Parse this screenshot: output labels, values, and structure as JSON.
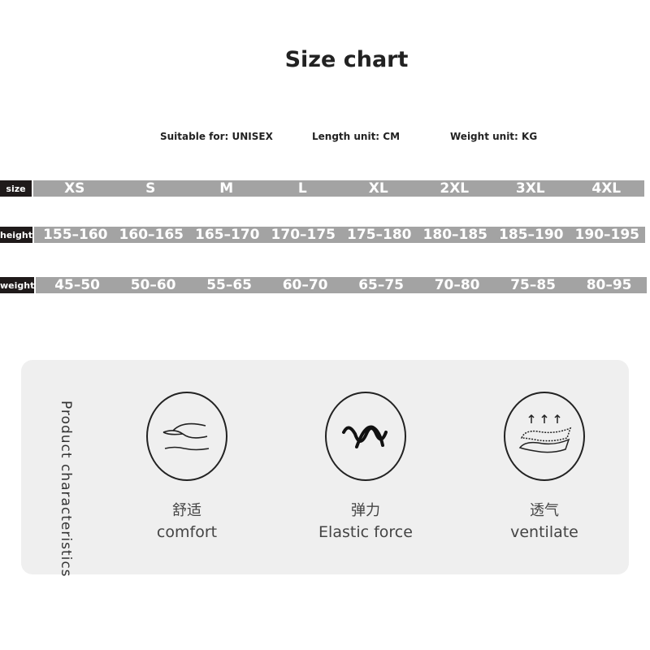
{
  "title": "Size chart",
  "meta": {
    "suitable": "Suitable for:  UNISEX",
    "length": "Length unit: CM",
    "weight": "Weight unit: KG"
  },
  "rows": [
    {
      "label": "size",
      "values": [
        "XS",
        "S",
        "M",
        "L",
        "XL",
        "2XL",
        "3XL",
        "4XL"
      ]
    },
    {
      "label": "height",
      "values": [
        "155–160",
        "160–165",
        "165–170",
        "170–175",
        "175–180",
        "180–185",
        "185–190",
        "190–195"
      ]
    },
    {
      "label": "weight",
      "values": [
        "45–50",
        "50–60",
        "55–65",
        "60–70",
        "65–75",
        "70–80",
        "75–85",
        "80–95"
      ]
    }
  ],
  "characteristics": {
    "heading": "Product characteristics",
    "items": [
      {
        "icon": "hand-comfort-icon",
        "cn": "舒适",
        "en": "comfort"
      },
      {
        "icon": "elastic-wave-icon",
        "cn": "弹力",
        "en": "Elastic force"
      },
      {
        "icon": "breathable-fabric-icon",
        "cn": "透气",
        "en": "ventilate"
      }
    ]
  },
  "colors": {
    "bar": "#a3a3a3",
    "label": "#1f1a1a",
    "panel": "#efefef"
  }
}
